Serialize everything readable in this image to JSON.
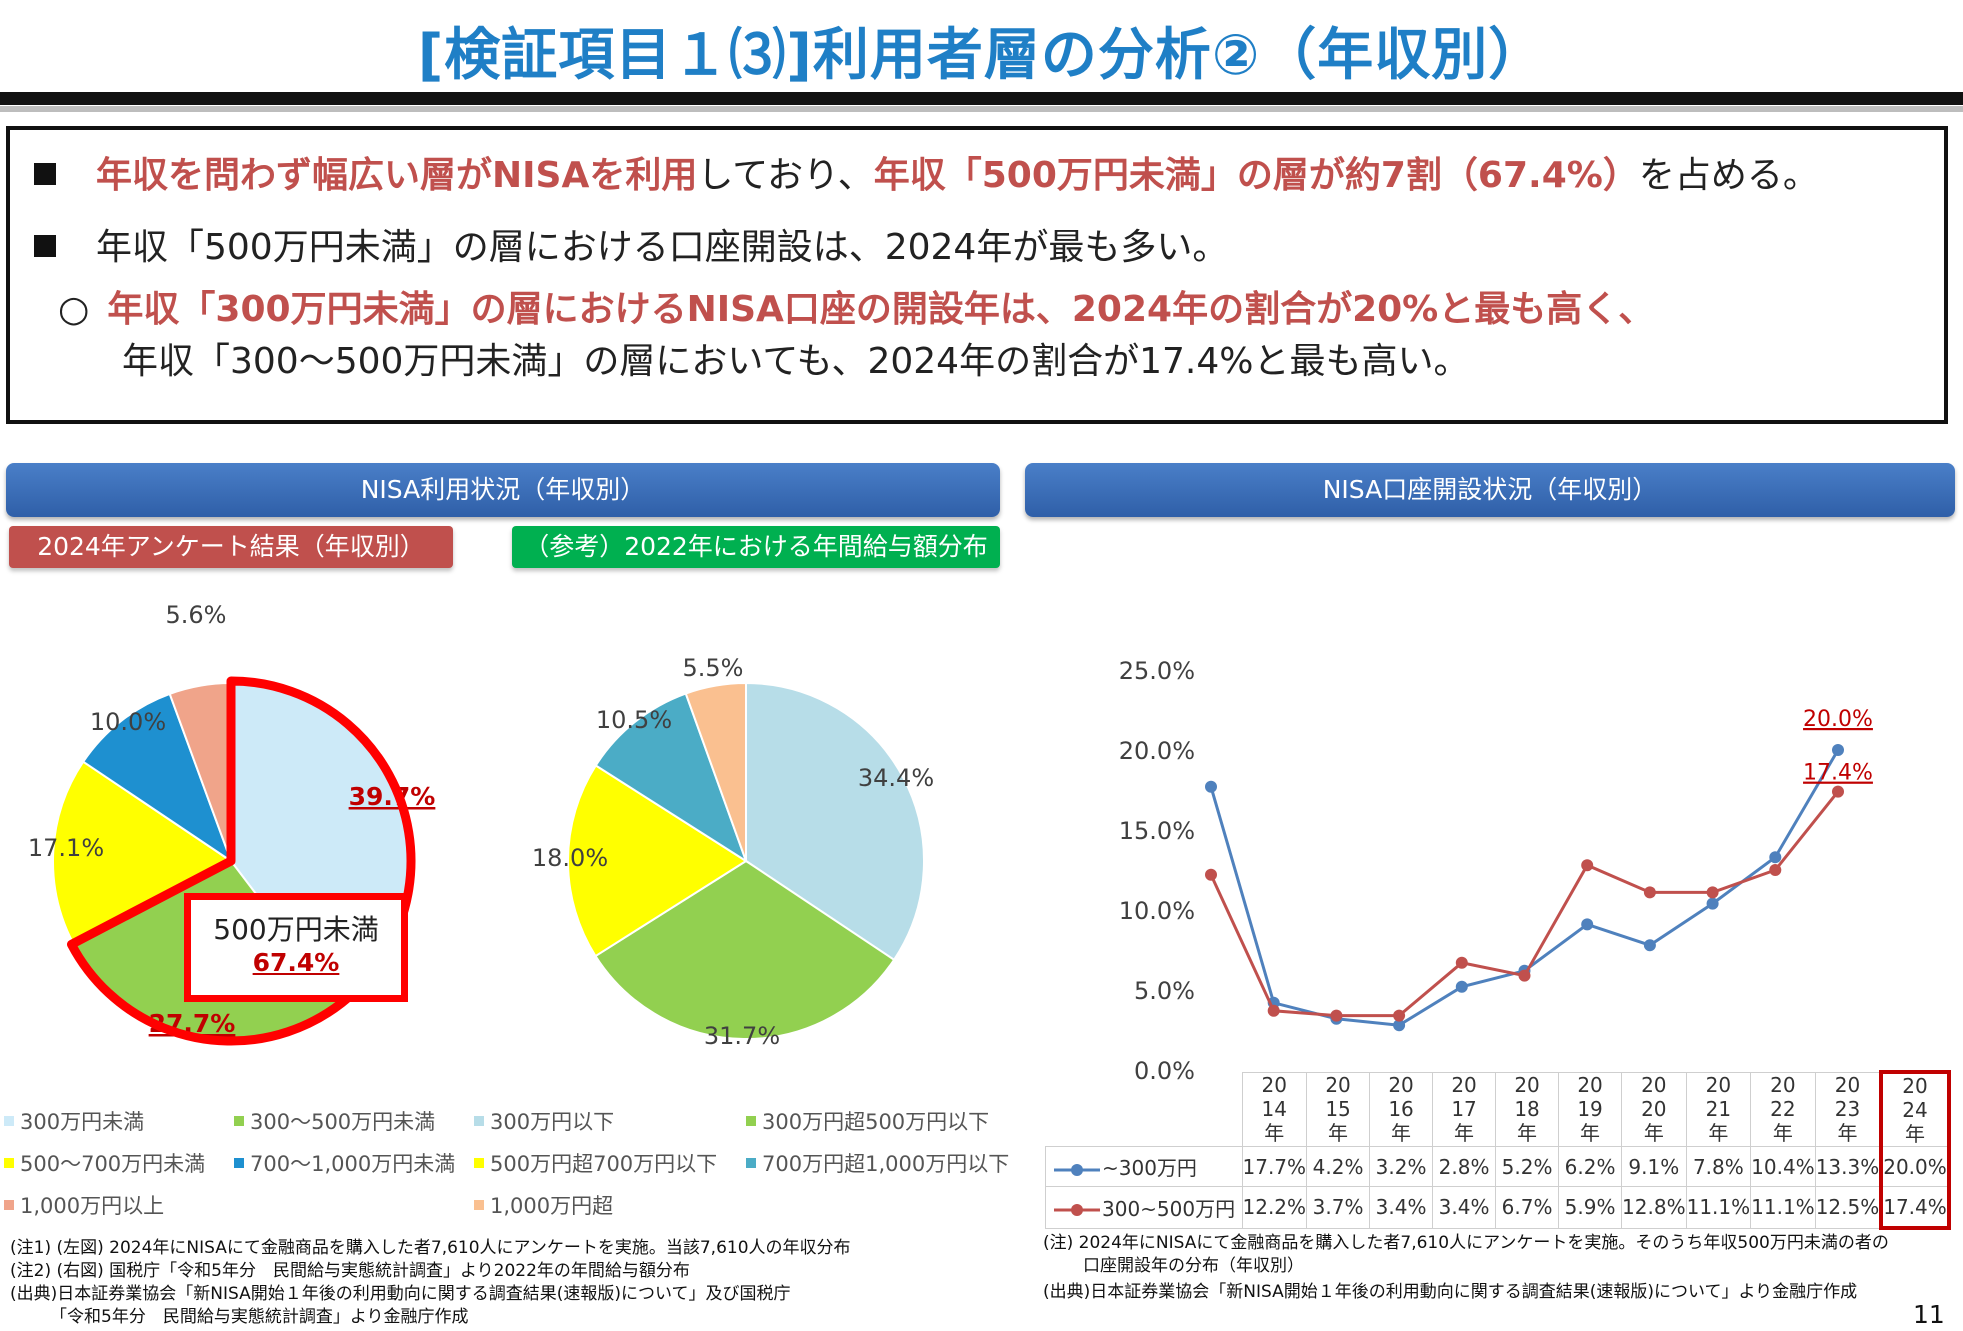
{
  "title": "[検証項目１⑶]利用者層の分析②（年収別）",
  "summary": {
    "line1_red": "年収を問わず幅広い層がNISAを利用",
    "line1_mid": "しており、",
    "line1_red2": "年収「500万円未満」の層が約7割（67.4%）",
    "line1_end": "を占める。",
    "line2": "年収「500万円未満」の層における口座開設は、2024年が最も多い。",
    "line3_bullet": "○",
    "line3_red": "年収「300万円未満」の層におけるNISA口座の開設年は、2024年の割合が20%と最も高く、",
    "line4": "年収「300～500万円未満」の層においても、2024年の割合が17.4%と最も高い。"
  },
  "left_panel": {
    "header": "NISA利用状況（年収別）",
    "tag_survey": "2024年アンケート結果（年収別）",
    "tag_reference": "（参考）2022年における年間給与額分布",
    "callout_label": "500万円未満",
    "callout_value": "67.4%"
  },
  "right_panel": {
    "header": "NISA口座開設状況（年収別）"
  },
  "chart_data": [
    {
      "type": "pie",
      "labels": [
        "300万円未満",
        "300～500万円未満",
        "500～700万円未満",
        "700～1,000万円未満",
        "1,000万円以上"
      ],
      "values": [
        39.7,
        27.7,
        17.1,
        10.0,
        5.6
      ],
      "value_labels": [
        "39.7%",
        "27.7%",
        "17.1%",
        "10.0%",
        "5.6%"
      ],
      "colors": [
        "#cdeaf8",
        "#92d050",
        "#ffff00",
        "#1e90d0",
        "#f0a48a"
      ]
    },
    {
      "type": "pie",
      "labels": [
        "300万円以下",
        "300万円超500万円以下",
        "500万円超700万円以下",
        "700万円超1,000万円以下",
        "1,000万円超"
      ],
      "values": [
        34.4,
        31.7,
        18.0,
        10.5,
        5.5
      ],
      "value_labels": [
        "34.4%",
        "31.7%",
        "18.0%",
        "10.5%",
        "5.5%"
      ],
      "colors": [
        "#b7dde8",
        "#92d050",
        "#ffff00",
        "#4bacc6",
        "#fac090"
      ]
    },
    {
      "type": "line",
      "x": [
        "2014年",
        "2015年",
        "2016年",
        "2017年",
        "2018年",
        "2019年",
        "2020年",
        "2021年",
        "2022年",
        "2023年",
        "2024年"
      ],
      "series": [
        {
          "name": "~300万円",
          "values": [
            17.7,
            4.2,
            3.2,
            2.8,
            5.2,
            6.2,
            9.1,
            7.8,
            10.4,
            13.3,
            20.0
          ],
          "labels": [
            "17.7%",
            "4.2%",
            "3.2%",
            "2.8%",
            "5.2%",
            "6.2%",
            "9.1%",
            "7.8%",
            "10.4%",
            "13.3%",
            "20.0%"
          ],
          "color": "#4f81bd"
        },
        {
          "name": "300~500万円",
          "values": [
            12.2,
            3.7,
            3.4,
            3.4,
            6.7,
            5.9,
            12.8,
            11.1,
            11.1,
            12.5,
            17.4
          ],
          "labels": [
            "12.2%",
            "3.7%",
            "3.4%",
            "3.4%",
            "6.7%",
            "5.9%",
            "12.8%",
            "11.1%",
            "11.1%",
            "12.5%",
            "17.4%"
          ],
          "color": "#c0504d"
        }
      ],
      "yticks": [
        "0.0%",
        "5.0%",
        "10.0%",
        "15.0%",
        "20.0%",
        "25.0%"
      ],
      "ylim": [
        0,
        25
      ],
      "annotations": [
        "20.0%",
        "17.4%"
      ],
      "grid": false
    }
  ],
  "notes_left": [
    "(注1) (左図) 2024年にNISAにて金融商品を購入した者7,610人にアンケートを実施。当該7,610人の年収分布",
    "(注2) (右図) 国税庁「令和5年分　民間給与実態統計調査」より2022年の年間給与額分布",
    "(出典)日本証券業協会「新NISA開始１年後の利用動向に関する調査結果(速報版)について」及び国税庁",
    "「令和5年分　民間給与実態統計調査」より金融庁作成"
  ],
  "notes_right": [
    "(注) 2024年にNISAにて金融商品を購入した者7,610人にアンケートを実施。そのうち年収500万円未満の者の",
    "口座開設年の分布（年収別）",
    "(出典)日本証券業協会「新NISA開始１年後の利用動向に関する調査結果(速報版)について」より金融庁作成"
  ],
  "page_number": "11"
}
